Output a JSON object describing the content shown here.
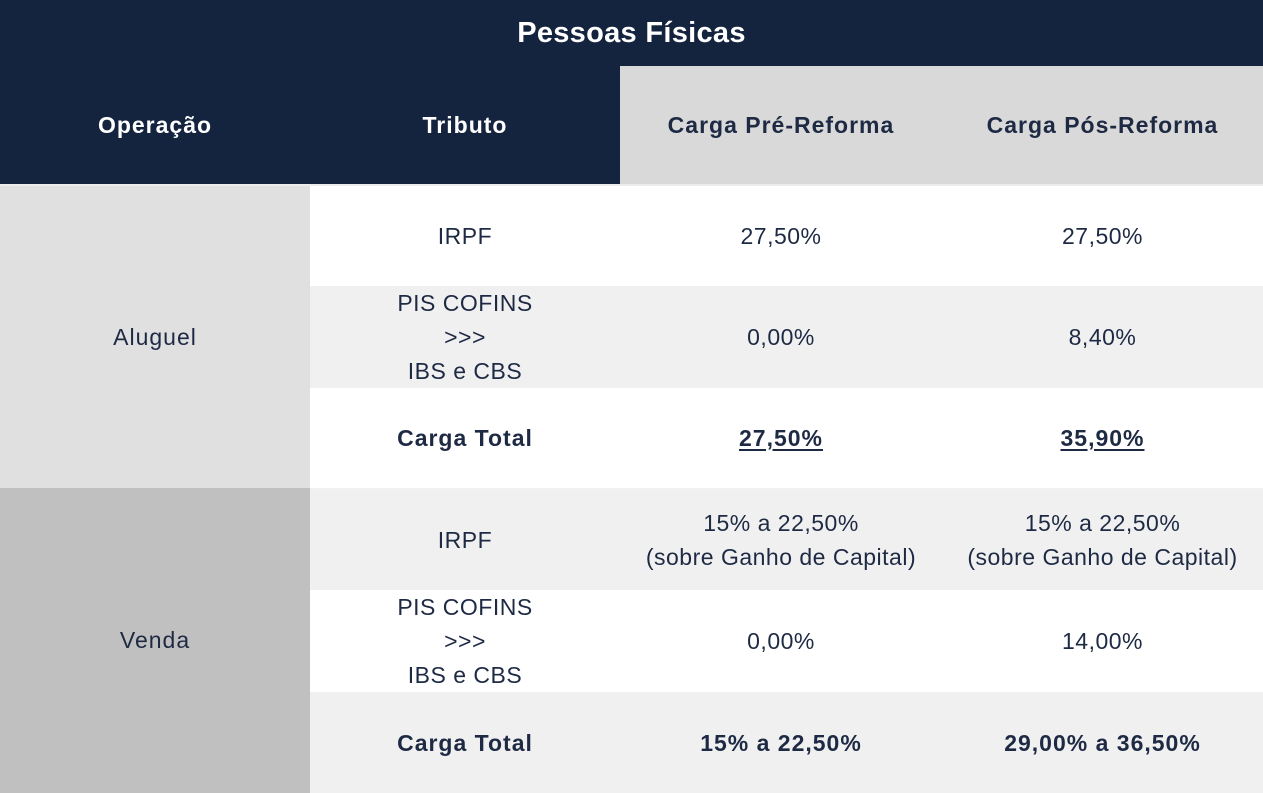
{
  "title": "Pessoas Físicas",
  "headers": {
    "operacao": "Operação",
    "tributo": "Tributo",
    "pre": "Carga Pré-Reforma",
    "pos": "Carga Pós-Reforma"
  },
  "aluguel": {
    "label": "Aluguel",
    "rows": [
      {
        "tributo": [
          "IRPF"
        ],
        "pre": [
          "27,50%"
        ],
        "pos": [
          "27,50%"
        ]
      },
      {
        "tributo": [
          "PIS COFINS",
          ">>>",
          "IBS e CBS"
        ],
        "pre": [
          "0,00%"
        ],
        "pos": [
          "8,40%"
        ]
      },
      {
        "tributo": [
          "Carga Total"
        ],
        "pre": [
          "27,50%"
        ],
        "pos": [
          "35,90%"
        ]
      }
    ]
  },
  "venda": {
    "label": "Venda",
    "rows": [
      {
        "tributo": [
          "IRPF"
        ],
        "pre": [
          "15% a 22,50%",
          "(sobre Ganho de Capital)"
        ],
        "pos": [
          "15% a 22,50%",
          "(sobre Ganho de Capital)"
        ]
      },
      {
        "tributo": [
          "PIS COFINS",
          ">>>",
          "IBS e CBS"
        ],
        "pre": [
          "0,00%"
        ],
        "pos": [
          "14,00%"
        ]
      },
      {
        "tributo": [
          "Carga Total"
        ],
        "pre": [
          "15% a 22,50%"
        ],
        "pos": [
          "29,00% a 36,50%"
        ]
      }
    ]
  },
  "colors": {
    "header_dark": "#14243f",
    "header_light": "#d9d9d9",
    "aluguel_bg": "#e0e0e0",
    "venda_bg": "#c0c0c0",
    "row_alt": "#f0f0f0",
    "text": "#1e2a44"
  }
}
